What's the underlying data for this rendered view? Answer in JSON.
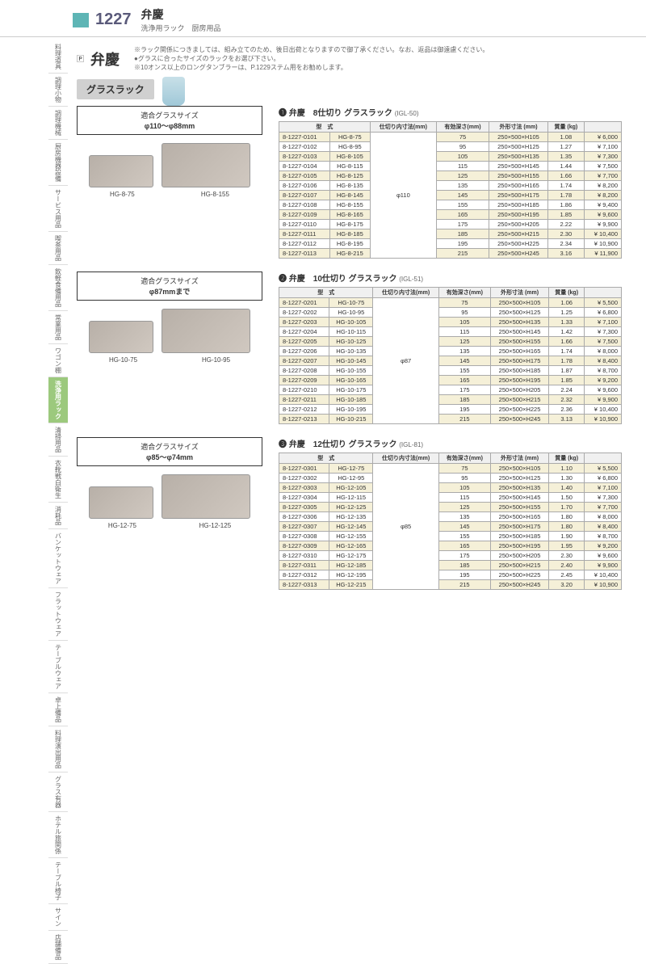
{
  "header": {
    "pageNum": "1227",
    "title": "弁慶",
    "subtitle": "洗浄用ラック　厨房用品"
  },
  "sidebar": [
    "料理道具",
    "調理小物",
    "調理機械",
    "厨房機器設備",
    "サービス用品",
    "喫茶用品",
    "飲軽食備用品",
    "常業用品",
    "ワゴン棚",
    "洗浄用ラック",
    "清掃用品",
    "衣靴戦白衛生",
    "消耗品",
    "バンケットウェア",
    "フラットウェア",
    "テーブルウェア",
    "卓上備品",
    "料理演出用品",
    "グラス有器",
    "ホテル旅関係",
    "テーブル椅子",
    "サイン",
    "店舗備品"
  ],
  "sidebarActive": 9,
  "brand": "弁慶",
  "notes": [
    "※ラック関係につきましては、組み立てのため、後日出荷となりますので御了承ください。なお、返品は御遠慮ください。",
    "●グラスに合ったサイズのラックをお選び下さい。",
    "※10オンス以上のロングタンブラーは、P.1229ステム用をお勧めします。"
  ],
  "sectionLabel": "グラスラック",
  "cols": [
    "型　式",
    "仕切り内寸法(mm)",
    "有効深さ(mm)",
    "外形寸法 (mm)",
    "質量 (kg)",
    ""
  ],
  "products": [
    {
      "sizeBox": [
        "適合グラスサイズ",
        "φ110～φ88mm"
      ],
      "imgLabels": [
        "HG-8-75",
        "HG-8-155"
      ],
      "title": "❶ 弁慶　8仕切り グラスラック",
      "igl": "(IGL-50)",
      "dia": "φ110",
      "rows": [
        [
          "8-1227-0101",
          "HG-8-75",
          "75",
          "250×500×H105",
          "1.08",
          "¥ 6,000"
        ],
        [
          "8-1227-0102",
          "HG-8-95",
          "95",
          "250×500×H125",
          "1.27",
          "¥ 7,100"
        ],
        [
          "8-1227-0103",
          "HG-8-105",
          "105",
          "250×500×H135",
          "1.35",
          "¥ 7,300"
        ],
        [
          "8-1227-0104",
          "HG-8-115",
          "115",
          "250×500×H145",
          "1.44",
          "¥ 7,500"
        ],
        [
          "8-1227-0105",
          "HG-8-125",
          "125",
          "250×500×H155",
          "1.66",
          "¥ 7,700"
        ],
        [
          "8-1227-0106",
          "HG-8-135",
          "135",
          "250×500×H165",
          "1.74",
          "¥ 8,200"
        ],
        [
          "8-1227-0107",
          "HG-8-145",
          "145",
          "250×500×H175",
          "1.78",
          "¥ 8,200"
        ],
        [
          "8-1227-0108",
          "HG-8-155",
          "155",
          "250×500×H185",
          "1.86",
          "¥ 9,400"
        ],
        [
          "8-1227-0109",
          "HG-8-165",
          "165",
          "250×500×H195",
          "1.85",
          "¥ 9,600"
        ],
        [
          "8-1227-0110",
          "HG-8-175",
          "175",
          "250×500×H205",
          "2.22",
          "¥ 9,900"
        ],
        [
          "8-1227-0111",
          "HG-8-185",
          "185",
          "250×500×H215",
          "2.30",
          "¥ 10,400"
        ],
        [
          "8-1227-0112",
          "HG-8-195",
          "195",
          "250×500×H225",
          "2.34",
          "¥ 10,900"
        ],
        [
          "8-1227-0113",
          "HG-8-215",
          "215",
          "250×500×H245",
          "3.16",
          "¥ 11,900"
        ]
      ]
    },
    {
      "sizeBox": [
        "適合グラスサイズ",
        "φ87mmまで"
      ],
      "imgLabels": [
        "HG-10-75",
        "HG-10-95"
      ],
      "title": "❷ 弁慶　10仕切り グラスラック",
      "igl": "(IGL-51)",
      "dia": "φ87",
      "rows": [
        [
          "8-1227-0201",
          "HG-10-75",
          "75",
          "250×500×H105",
          "1.06",
          "¥ 5,500"
        ],
        [
          "8-1227-0202",
          "HG-10-95",
          "95",
          "250×500×H125",
          "1.25",
          "¥ 6,800"
        ],
        [
          "8-1227-0203",
          "HG-10-105",
          "105",
          "250×500×H135",
          "1.33",
          "¥ 7,100"
        ],
        [
          "8-1227-0204",
          "HG-10-115",
          "115",
          "250×500×H145",
          "1.42",
          "¥ 7,300"
        ],
        [
          "8-1227-0205",
          "HG-10-125",
          "125",
          "250×500×H155",
          "1.66",
          "¥ 7,500"
        ],
        [
          "8-1227-0206",
          "HG-10-135",
          "135",
          "250×500×H165",
          "1.74",
          "¥ 8,000"
        ],
        [
          "8-1227-0207",
          "HG-10-145",
          "145",
          "250×500×H175",
          "1.78",
          "¥ 8,400"
        ],
        [
          "8-1227-0208",
          "HG-10-155",
          "155",
          "250×500×H185",
          "1.87",
          "¥ 8,700"
        ],
        [
          "8-1227-0209",
          "HG-10-165",
          "165",
          "250×500×H195",
          "1.85",
          "¥ 9,200"
        ],
        [
          "8-1227-0210",
          "HG-10-175",
          "175",
          "250×500×H205",
          "2.24",
          "¥ 9,600"
        ],
        [
          "8-1227-0211",
          "HG-10-185",
          "185",
          "250×500×H215",
          "2.32",
          "¥ 9,900"
        ],
        [
          "8-1227-0212",
          "HG-10-195",
          "195",
          "250×500×H225",
          "2.36",
          "¥ 10,400"
        ],
        [
          "8-1227-0213",
          "HG-10-215",
          "215",
          "250×500×H245",
          "3.13",
          "¥ 10,900"
        ]
      ]
    },
    {
      "sizeBox": [
        "適合グラスサイズ",
        "φ85～φ74mm"
      ],
      "imgLabels": [
        "HG-12-75",
        "HG-12-125"
      ],
      "title": "❸ 弁慶　12仕切り グラスラック",
      "igl": "(IGL-81)",
      "dia": "φ85",
      "rows": [
        [
          "8-1227-0301",
          "HG-12-75",
          "75",
          "250×500×H105",
          "1.10",
          "¥ 5,500"
        ],
        [
          "8-1227-0302",
          "HG-12-95",
          "95",
          "250×500×H125",
          "1.30",
          "¥ 6,800"
        ],
        [
          "8-1227-0303",
          "HG-12-105",
          "105",
          "250×500×H135",
          "1.40",
          "¥ 7,100"
        ],
        [
          "8-1227-0304",
          "HG-12-115",
          "115",
          "250×500×H145",
          "1.50",
          "¥ 7,300"
        ],
        [
          "8-1227-0305",
          "HG-12-125",
          "125",
          "250×500×H155",
          "1.70",
          "¥ 7,700"
        ],
        [
          "8-1227-0306",
          "HG-12-135",
          "135",
          "250×500×H165",
          "1.80",
          "¥ 8,000"
        ],
        [
          "8-1227-0307",
          "HG-12-145",
          "145",
          "250×500×H175",
          "1.80",
          "¥ 8,400"
        ],
        [
          "8-1227-0308",
          "HG-12-155",
          "155",
          "250×500×H185",
          "1.90",
          "¥ 8,700"
        ],
        [
          "8-1227-0309",
          "HG-12-165",
          "165",
          "250×500×H195",
          "1.95",
          "¥ 9,200"
        ],
        [
          "8-1227-0310",
          "HG-12-175",
          "175",
          "250×500×H205",
          "2.30",
          "¥ 9,600"
        ],
        [
          "8-1227-0311",
          "HG-12-185",
          "185",
          "250×500×H215",
          "2.40",
          "¥ 9,900"
        ],
        [
          "8-1227-0312",
          "HG-12-195",
          "195",
          "250×500×H225",
          "2.45",
          "¥ 10,400"
        ],
        [
          "8-1227-0313",
          "HG-12-215",
          "215",
          "250×500×H245",
          "3.20",
          "¥ 10,900"
        ]
      ]
    }
  ]
}
